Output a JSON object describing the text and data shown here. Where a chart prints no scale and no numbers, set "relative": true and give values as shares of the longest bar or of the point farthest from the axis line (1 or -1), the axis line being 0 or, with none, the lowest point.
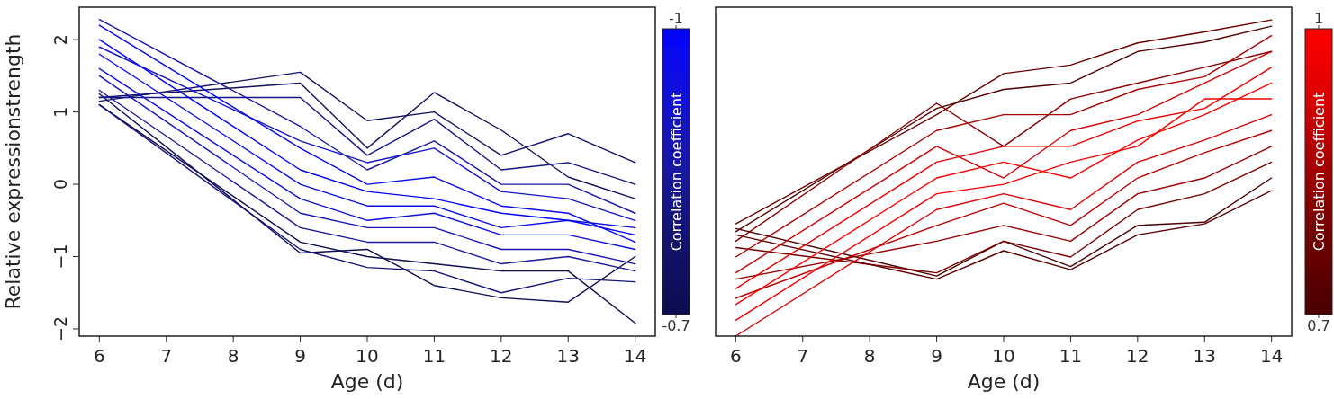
{
  "chart_data": [
    {
      "type": "line",
      "xlabel": "Age (d)",
      "ylabel": "Relative expressionstrength",
      "clabel": "Correlation coefficient",
      "annotations": [
        "-1",
        "-0.7"
      ],
      "xlim": [
        5.7,
        14.3
      ],
      "xticks": [
        6,
        7,
        8,
        9,
        10,
        11,
        12,
        13,
        14
      ],
      "ylim": [
        -2.1,
        2.45
      ],
      "yticks": [
        {
          "value": -2,
          "label": "−2"
        },
        {
          "value": -1,
          "label": "−1"
        },
        0,
        1,
        2
      ],
      "x": [
        6,
        9,
        10,
        11,
        12,
        13,
        14
      ],
      "series": [
        {
          "color": "#0000ff",
          "values": [
            2.0,
            0.2,
            -0.1,
            -0.2,
            -0.4,
            -0.5,
            -0.7
          ]
        },
        {
          "color": "#0a0af0",
          "values": [
            2.2,
            0.5,
            0.0,
            0.1,
            -0.3,
            -0.4,
            -0.8
          ]
        },
        {
          "color": "#0c0ce6",
          "values": [
            1.8,
            0.0,
            -0.3,
            -0.3,
            -0.6,
            -0.5,
            -0.6
          ]
        },
        {
          "color": "#1010d8",
          "values": [
            1.6,
            -0.2,
            -0.5,
            -0.4,
            -0.7,
            -0.7,
            -0.9
          ]
        },
        {
          "color": "#1414c8",
          "values": [
            1.9,
            0.6,
            0.3,
            0.5,
            -0.1,
            -0.2,
            -0.5
          ]
        },
        {
          "color": "#1515b8",
          "values": [
            1.5,
            -0.4,
            -0.6,
            -0.6,
            -0.9,
            -0.9,
            -1.1
          ]
        },
        {
          "color": "#1818a8",
          "values": [
            2.28,
            0.8,
            0.2,
            0.6,
            0.0,
            0.0,
            -0.4
          ]
        },
        {
          "color": "#181898",
          "values": [
            1.3,
            -0.6,
            -0.8,
            -0.8,
            -1.1,
            -1.0,
            -1.2
          ]
        },
        {
          "color": "#161688",
          "values": [
            1.2,
            1.2,
            0.4,
            0.9,
            0.2,
            0.3,
            0.0
          ]
        },
        {
          "color": "#141478",
          "values": [
            1.1,
            -0.9,
            -1.15,
            -1.2,
            -1.5,
            -1.3,
            -1.35
          ]
        },
        {
          "color": "#121268",
          "values": [
            1.15,
            1.55,
            0.88,
            1.0,
            0.4,
            0.7,
            0.3
          ]
        },
        {
          "color": "#101060",
          "values": [
            1.2,
            1.4,
            0.5,
            1.27,
            0.75,
            0.1,
            -0.2
          ]
        },
        {
          "color": "#0e0e58",
          "values": [
            1.25,
            -0.95,
            -0.9,
            -1.4,
            -1.57,
            -1.63,
            -1.0
          ]
        },
        {
          "color": "#0c0c50",
          "values": [
            1.1,
            -0.8,
            -1.0,
            -1.1,
            -1.2,
            -1.2,
            -1.92
          ]
        }
      ]
    },
    {
      "type": "line",
      "xlabel": "Age (d)",
      "clabel": "Correlation coefficient",
      "annotations": [
        "1",
        "0.7"
      ],
      "xlim": [
        5.7,
        14.3
      ],
      "xticks": [
        6,
        7,
        8,
        9,
        10,
        11,
        12,
        13,
        14
      ],
      "relative": true,
      "x": [
        6,
        9,
        10,
        11,
        12,
        13,
        14
      ],
      "series": [
        {
          "color": "#ff0000",
          "values": [
            0.1,
            0.5,
            0.55,
            0.5,
            0.62,
            0.7,
            0.8
          ]
        },
        {
          "color": "#f40000",
          "values": [
            0.05,
            0.45,
            0.48,
            0.55,
            0.6,
            0.75,
            0.75
          ]
        },
        {
          "color": "#e80000",
          "values": [
            0.15,
            0.55,
            0.6,
            0.6,
            0.68,
            0.72,
            0.85
          ]
        },
        {
          "color": "#dc0000",
          "values": [
            0.0,
            0.4,
            0.45,
            0.4,
            0.55,
            0.62,
            0.7
          ]
        },
        {
          "color": "#cc0000",
          "values": [
            0.2,
            0.6,
            0.5,
            0.65,
            0.7,
            0.8,
            0.9
          ]
        },
        {
          "color": "#bb0000",
          "values": [
            0.12,
            0.35,
            0.42,
            0.35,
            0.5,
            0.58,
            0.65
          ]
        },
        {
          "color": "#aa0000",
          "values": [
            0.25,
            0.65,
            0.7,
            0.7,
            0.78,
            0.82,
            0.95
          ]
        },
        {
          "color": "#990000",
          "values": [
            0.18,
            0.3,
            0.35,
            0.3,
            0.45,
            0.5,
            0.6
          ]
        },
        {
          "color": "#880000",
          "values": [
            0.3,
            0.736,
            0.6,
            0.75,
            0.8,
            0.85,
            0.9
          ]
        },
        {
          "color": "#780000",
          "values": [
            0.28,
            0.2,
            0.3,
            0.25,
            0.4,
            0.45,
            0.55
          ]
        },
        {
          "color": "#6a0000",
          "values": [
            0.355,
            0.7,
            0.83,
            0.857,
            0.927,
            0.962,
            1.0
          ]
        },
        {
          "color": "#5e0000",
          "values": [
            0.32,
            0.18,
            0.27,
            0.21,
            0.32,
            0.355,
            0.46
          ]
        },
        {
          "color": "#520000",
          "values": [
            0.33,
            0.72,
            0.78,
            0.8,
            0.9,
            0.93,
            0.98
          ]
        },
        {
          "color": "#4a0000",
          "values": [
            0.34,
            0.19,
            0.3,
            0.22,
            0.35,
            0.36,
            0.5
          ]
        }
      ]
    }
  ]
}
